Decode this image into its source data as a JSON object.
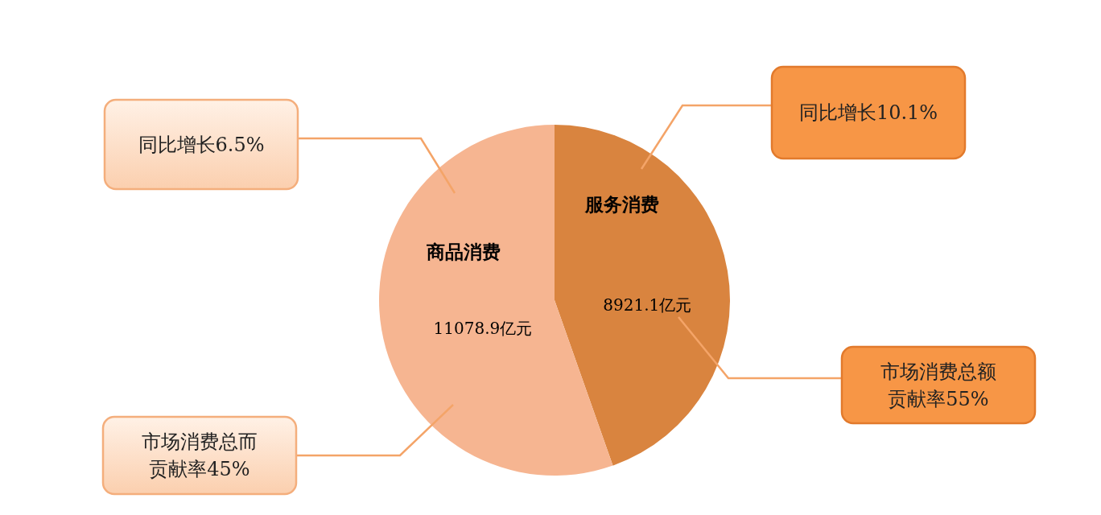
{
  "chart_data": {
    "type": "pie",
    "categories": [
      "服务消费",
      "商品消费"
    ],
    "values": [
      8921.1,
      11078.9
    ],
    "colors": [
      "#d9843f",
      "#f6b591"
    ],
    "value_labels": [
      "8921.1亿元",
      "11078.9亿元"
    ],
    "annotations": [
      "同比增长10.1%",
      "同比增长6.5%",
      "市场消费总额贡献率55%",
      "市场消费总而贡献率45%"
    ]
  }
}
